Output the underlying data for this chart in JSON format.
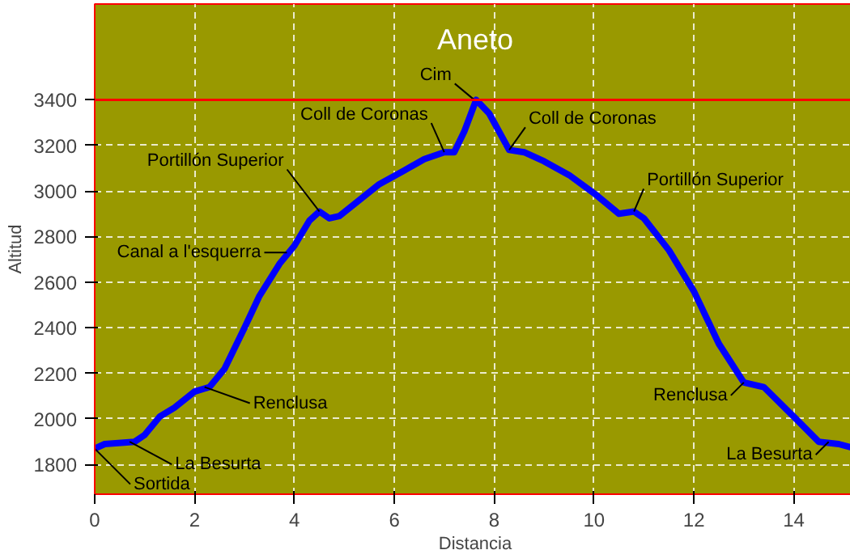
{
  "chart_data": {
    "type": "line",
    "title": "Aneto",
    "xlabel": "Distancia",
    "ylabel": "Altitud",
    "x": [
      0,
      0.2,
      0.8,
      1.0,
      1.3,
      1.6,
      2.0,
      2.3,
      2.6,
      3.0,
      3.3,
      3.7,
      4.0,
      4.3,
      4.5,
      4.7,
      4.9,
      5.3,
      5.7,
      6.2,
      6.6,
      7.0,
      7.2,
      7.4,
      7.64,
      7.9,
      8.3,
      8.6,
      9.0,
      9.5,
      10.0,
      10.5,
      10.8,
      11.0,
      11.5,
      12.0,
      12.5,
      13.0,
      13.4,
      14.0,
      14.5,
      14.9,
      15.24
    ],
    "series": [
      {
        "color": "#0000ff",
        "values": [
          1870,
          1890,
          1900,
          1930,
          2010,
          2050,
          2120,
          2140,
          2220,
          2400,
          2540,
          2680,
          2760,
          2870,
          2910,
          2880,
          2890,
          2960,
          3030,
          3090,
          3140,
          3170,
          3170,
          3260,
          3400,
          3340,
          3180,
          3170,
          3130,
          3070,
          2990,
          2900,
          2910,
          2880,
          2740,
          2560,
          2330,
          2160,
          2140,
          2010,
          1900,
          1890,
          1870
        ]
      }
    ],
    "xlim": [
      0,
      15.24
    ],
    "ylim": [
      1670,
      3820
    ],
    "xticks": [
      0,
      2,
      4,
      6,
      8,
      10,
      12,
      14
    ],
    "yticks": [
      1800,
      2000,
      2200,
      2400,
      2600,
      2800,
      3000,
      3200,
      3400
    ],
    "grid": true,
    "line_style": "solid",
    "marker": "none",
    "ref_lines": [
      {
        "axis": "y",
        "value": 3400,
        "color": "#ff0000"
      }
    ],
    "annotations": [
      {
        "text": "Sortida",
        "x": 0,
        "y": 1870
      },
      {
        "text": "La Besurta",
        "x": 0.7,
        "y": 1900
      },
      {
        "text": "Renclusa",
        "x": 2.2,
        "y": 2140
      },
      {
        "text": "Canal a l'esquerra",
        "x": 3.85,
        "y": 2730
      },
      {
        "text": "Portillón Superior",
        "x": 4.5,
        "y": 2910
      },
      {
        "text": "Coll de Coronas",
        "x": 7.0,
        "y": 3170
      },
      {
        "text": "Cim",
        "x": 7.6,
        "y": 3400
      },
      {
        "text": "Coll de Coronas",
        "x": 8.3,
        "y": 3180
      },
      {
        "text": "Portillón Superior",
        "x": 10.8,
        "y": 2910
      },
      {
        "text": "Renclusa",
        "x": 13.0,
        "y": 2160
      },
      {
        "text": "La Besurta",
        "x": 14.7,
        "y": 1900
      }
    ]
  }
}
